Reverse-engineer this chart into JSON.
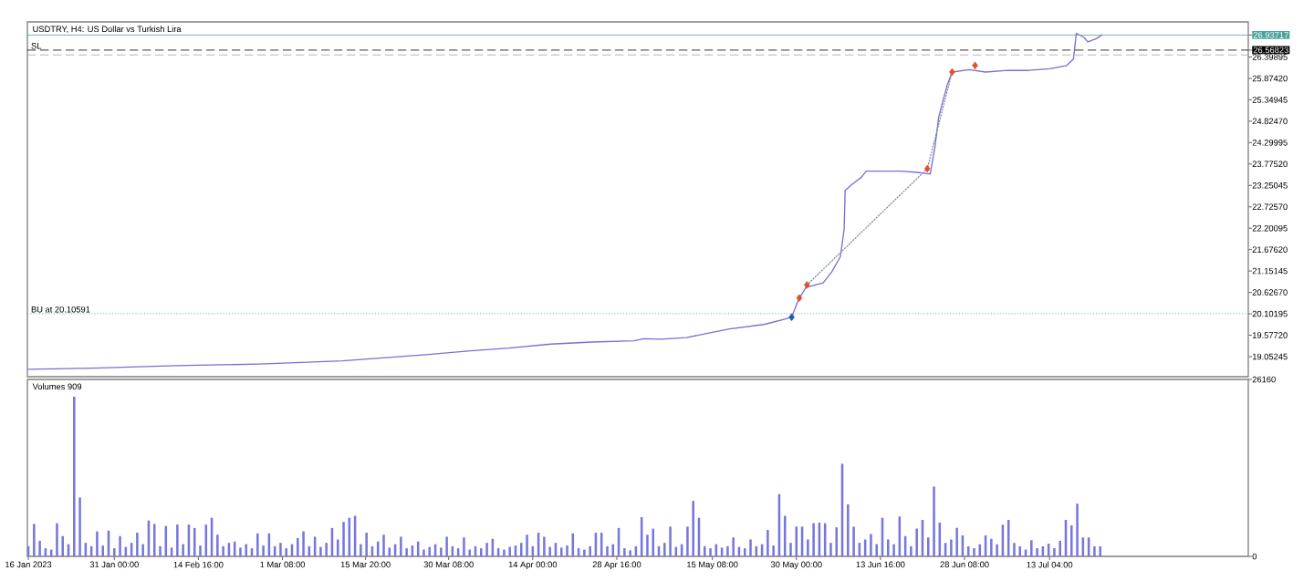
{
  "chart_data": [
    {
      "type": "line",
      "title": "USDTRY, H4: US Dollar vs Turkish Lira",
      "xlim": [
        "2023-01-15T20:00",
        "2023-08-16T20:00"
      ],
      "ylim": [
        18.56,
        27.26
      ],
      "tick_labels": "y",
      "yticks": [
        19.05245,
        {
          "value": 19.5772,
          "label": "19.57720"
        },
        20.10195,
        {
          "value": 20.6267,
          "label": "20.62670"
        },
        21.15145,
        {
          "value": 21.6762,
          "label": "21.67620"
        },
        22.20095,
        {
          "value": 22.7257,
          "label": "22.72570"
        },
        23.25045,
        {
          "value": 23.7752,
          "label": "23.77520"
        },
        24.29995,
        {
          "value": 24.8247,
          "label": "24.82470"
        },
        25.34945,
        {
          "value": 25.8742,
          "label": "25.87420"
        },
        26.39895,
        26.56823,
        26.93717
      ],
      "ref_lines": [
        {
          "axis": "y",
          "value": 26.93717,
          "color": "#4aa39b",
          "line_style": "solid"
        },
        {
          "axis": "y",
          "value": 26.56823,
          "label": "SL",
          "color": "#000000",
          "line_style": "dashed"
        },
        {
          "axis": "y",
          "value": 26.45,
          "color": "#b89aa4",
          "line_style": "dashed"
        },
        {
          "axis": "y",
          "value": 20.10591,
          "label": "BU at 20.10591",
          "color": "#3a9e96",
          "line_style": "dotted"
        }
      ],
      "series": [
        {
          "type": "line",
          "color": "#7a6fd0",
          "x": [
            "2023-01-16T00:00",
            "2023-01-27T08:00",
            "2023-02-10T20:00",
            "2023-02-25T08:00",
            "2023-03-11T20:00",
            "2023-03-26T08:00",
            "2023-04-02T16:00",
            "2023-04-09T20:00",
            "2023-04-17T04:00",
            "2023-04-24T08:00",
            "2023-05-01T16:00",
            "2023-05-03T08:00",
            "2023-05-06T08:00",
            "2023-05-10T20:00",
            "2023-05-18T08:00",
            "2023-05-24T08:00",
            "2023-05-28T00:00",
            "2023-05-29T04:00",
            "2023-05-30T08:00",
            "2023-05-31T16:00",
            "2023-06-03T16:00",
            "2023-06-05T04:00",
            "2023-06-06T16:00",
            "2023-06-07T08:00",
            "2023-06-07T12:00",
            "2023-06-08T20:00",
            "2023-06-10T08:00",
            "2023-06-11T04:00",
            "2023-06-14T04:00",
            "2023-06-17T04:00",
            "2023-06-20T04:00",
            "2023-06-22T08:00",
            "2023-06-23T04:00",
            "2023-06-23T20:00",
            "2023-06-24T12:00",
            "2023-06-25T08:00",
            "2023-06-26T04:00",
            "2023-06-29T04:00",
            "2023-07-02T00:00",
            "2023-07-05T20:00",
            "2023-07-09T12:00",
            "2023-07-13T04:00",
            "2023-07-16T04:00",
            "2023-07-17T08:00",
            "2023-07-17T20:00",
            "2023-07-19T04:00",
            "2023-07-19T20:00",
            "2023-07-21T08:00",
            "2023-07-22T08:00"
          ],
          "values": [
            18.74,
            18.77,
            18.83,
            18.87,
            18.95,
            19.1,
            19.19,
            19.26,
            19.36,
            19.41,
            19.44,
            19.49,
            19.48,
            19.52,
            19.73,
            19.84,
            19.97,
            20.02,
            20.44,
            20.75,
            20.86,
            21.13,
            21.5,
            22.18,
            23.13,
            23.29,
            23.45,
            23.6,
            23.6,
            23.6,
            23.57,
            23.53,
            24.19,
            24.93,
            25.29,
            25.72,
            26.03,
            26.09,
            26.03,
            26.07,
            26.07,
            26.11,
            26.19,
            26.35,
            26.98,
            26.88,
            26.77,
            26.85,
            26.94
          ]
        },
        {
          "type": "line",
          "line_style": "dotted",
          "color": "#8090a8",
          "x": [
            "2023-05-31T20:00",
            "2023-06-21T20:00",
            "2023-06-26T04:00"
          ],
          "values": [
            20.81,
            23.66,
            26.03
          ]
        },
        {
          "type": "scatter",
          "marker": "diamond",
          "color": "#e0512b",
          "x": [
            "2023-05-30T12:00",
            "2023-05-31T20:00",
            "2023-06-21T20:00",
            "2023-06-26T04:00",
            "2023-06-30T04:00"
          ],
          "values": [
            20.49,
            20.81,
            23.66,
            26.03,
            26.19
          ]
        },
        {
          "type": "scatter",
          "marker": "diamond",
          "color": "#1f5fa8",
          "x": [
            "2023-05-29T04:00"
          ],
          "values": [
            20.02
          ]
        }
      ]
    },
    {
      "type": "bar",
      "title": "Volumes 909",
      "xlim": [
        "2023-01-15T20:00",
        "2023-08-16T20:00"
      ],
      "ylim": [
        0,
        26160
      ],
      "yticks": [
        0,
        26160
      ],
      "xticks": [
        {
          "value": "2023-01-16T00:00",
          "label": "16 Jan 2023"
        },
        {
          "value": "2023-01-31T00:00",
          "label": "31 Jan 00:00"
        },
        {
          "value": "2023-02-14T16:00",
          "label": "14 Feb 16:00"
        },
        {
          "value": "2023-03-01T08:00",
          "label": "1 Mar 08:00"
        },
        {
          "value": "2023-03-15T20:00",
          "label": "15 Mar 20:00"
        },
        {
          "value": "2023-03-30T08:00",
          "label": "30 Mar 08:00"
        },
        {
          "value": "2023-04-14T00:00",
          "label": "14 Apr 00:00"
        },
        {
          "value": "2023-04-28T16:00",
          "label": "28 Apr 16:00"
        },
        {
          "value": "2023-05-15T08:00",
          "label": "15 May 08:00"
        },
        {
          "value": "2023-05-30T00:00",
          "label": "30 May 00:00"
        },
        {
          "value": "2023-06-13T16:00",
          "label": "13 Jun 16:00"
        },
        {
          "value": "2023-06-28T08:00",
          "label": "28 Jun 08:00"
        },
        {
          "value": "2023-07-13T04:00",
          "label": "13 Jul 04:00"
        }
      ],
      "color": "#7676de",
      "x": [
        "2023-01-16",
        "2023-01-17",
        "2023-01-18",
        "2023-01-19",
        "2023-01-20",
        "2023-01-21",
        "2023-01-22",
        "2023-01-23",
        "2023-01-24",
        "2023-01-25",
        "2023-01-26",
        "2023-01-27",
        "2023-01-28",
        "2023-01-29",
        "2023-01-30",
        "2023-01-31",
        "2023-02-01",
        "2023-02-02",
        "2023-02-03",
        "2023-02-04",
        "2023-02-05",
        "2023-02-06",
        "2023-02-07",
        "2023-02-08",
        "2023-02-09",
        "2023-02-10",
        "2023-02-11",
        "2023-02-12",
        "2023-02-13",
        "2023-02-14",
        "2023-02-15",
        "2023-02-16",
        "2023-02-17",
        "2023-02-18",
        "2023-02-19",
        "2023-02-20",
        "2023-02-21",
        "2023-02-22",
        "2023-02-23",
        "2023-02-24",
        "2023-02-25",
        "2023-02-26",
        "2023-02-27",
        "2023-02-28",
        "2023-03-01",
        "2023-03-02",
        "2023-03-03",
        "2023-03-04",
        "2023-03-05",
        "2023-03-06",
        "2023-03-07",
        "2023-03-08",
        "2023-03-09",
        "2023-03-10",
        "2023-03-11",
        "2023-03-12",
        "2023-03-13",
        "2023-03-14",
        "2023-03-15",
        "2023-03-16",
        "2023-03-17",
        "2023-03-18",
        "2023-03-19",
        "2023-03-20",
        "2023-03-21",
        "2023-03-22",
        "2023-03-23",
        "2023-03-24",
        "2023-03-25",
        "2023-03-26",
        "2023-03-27",
        "2023-03-28",
        "2023-03-29",
        "2023-03-30",
        "2023-03-31",
        "2023-04-01",
        "2023-04-02",
        "2023-04-03",
        "2023-04-04",
        "2023-04-05",
        "2023-04-06",
        "2023-04-07",
        "2023-04-08",
        "2023-04-09",
        "2023-04-10",
        "2023-04-11",
        "2023-04-12",
        "2023-04-13",
        "2023-04-14",
        "2023-04-15",
        "2023-04-16",
        "2023-04-17",
        "2023-04-18",
        "2023-04-19",
        "2023-04-20",
        "2023-04-21",
        "2023-04-22",
        "2023-04-23",
        "2023-04-24",
        "2023-04-25",
        "2023-04-26",
        "2023-04-27",
        "2023-04-28",
        "2023-04-29",
        "2023-04-30",
        "2023-05-01",
        "2023-05-02",
        "2023-05-03",
        "2023-05-04",
        "2023-05-05",
        "2023-05-06",
        "2023-05-07",
        "2023-05-08",
        "2023-05-09",
        "2023-05-10",
        "2023-05-11",
        "2023-05-12",
        "2023-05-13",
        "2023-05-14",
        "2023-05-15",
        "2023-05-16",
        "2023-05-17",
        "2023-05-18",
        "2023-05-19",
        "2023-05-20",
        "2023-05-21",
        "2023-05-22",
        "2023-05-23",
        "2023-05-24",
        "2023-05-25",
        "2023-05-26",
        "2023-05-27",
        "2023-05-28",
        "2023-05-29",
        "2023-05-30",
        "2023-05-31",
        "2023-06-01",
        "2023-06-02",
        "2023-06-03",
        "2023-06-04",
        "2023-06-05",
        "2023-06-06",
        "2023-06-07",
        "2023-06-08",
        "2023-06-09",
        "2023-06-10",
        "2023-06-11",
        "2023-06-12",
        "2023-06-13",
        "2023-06-14",
        "2023-06-15",
        "2023-06-16",
        "2023-06-17",
        "2023-06-18",
        "2023-06-19",
        "2023-06-20",
        "2023-06-21",
        "2023-06-22",
        "2023-06-23",
        "2023-06-24",
        "2023-06-25",
        "2023-06-26",
        "2023-06-27",
        "2023-06-28",
        "2023-06-29",
        "2023-06-30",
        "2023-07-01",
        "2023-07-02",
        "2023-07-03",
        "2023-07-04",
        "2023-07-05",
        "2023-07-06",
        "2023-07-07",
        "2023-07-08",
        "2023-07-09",
        "2023-07-10",
        "2023-07-11",
        "2023-07-12",
        "2023-07-13",
        "2023-07-14",
        "2023-07-15",
        "2023-07-16",
        "2023-07-17",
        "2023-07-18",
        "2023-07-19",
        "2023-07-20",
        "2023-07-21",
        "2023-07-22"
      ],
      "values": [
        1500,
        4800,
        2300,
        1200,
        1000,
        4900,
        3000,
        1800,
        23600,
        8700,
        2000,
        1500,
        3700,
        1600,
        3800,
        1200,
        3000,
        1400,
        2000,
        3500,
        1800,
        5300,
        4800,
        1500,
        4500,
        1300,
        4700,
        1800,
        4700,
        4200,
        1600,
        4700,
        5700,
        3200,
        1500,
        2000,
        2200,
        1300,
        1800,
        1200,
        3400,
        1600,
        3400,
        1500,
        2000,
        1200,
        1800,
        2700,
        3700,
        1500,
        2900,
        1400,
        2000,
        4200,
        2500,
        5100,
        5700,
        6000,
        1800,
        3500,
        1500,
        2200,
        3200,
        1300,
        1800,
        2900,
        1200,
        1600,
        2200,
        1000,
        1400,
        1800,
        1300,
        2900,
        1500,
        1200,
        2800,
        1000,
        1500,
        1200,
        2000,
        2600,
        1200,
        1000,
        1400,
        1600,
        2000,
        3200,
        1500,
        3500,
        2900,
        1400,
        2000,
        1300,
        1600,
        3400,
        1200,
        1000,
        1500,
        3500,
        3500,
        1500,
        1800,
        4200,
        1200,
        900,
        1500,
        5800,
        3200,
        4100,
        1500,
        2000,
        4400,
        1400,
        1800,
        4400,
        8200,
        5700,
        1500,
        1200,
        1800,
        1300,
        1500,
        2800,
        1400,
        1200,
        2500,
        1500,
        1800,
        3900,
        1600,
        9200,
        6000,
        2000,
        4400,
        4400,
        2500,
        4900,
        5000,
        4900,
        2000,
        4300,
        13700,
        7700,
        4400,
        2000,
        2500,
        3300,
        1800,
        5700,
        2500,
        1800,
        5900,
        3000,
        1500,
        4100,
        5400,
        2800,
        10300,
        5000,
        2000,
        2500,
        4200,
        3100,
        1500,
        1200,
        1800,
        3100,
        2600,
        1800,
        4700,
        5400,
        2000,
        1500,
        1000,
        2400,
        1200,
        1500,
        1900,
        1200,
        2300,
        5400,
        4600,
        7800,
        2800,
        2800,
        1500,
        1500
      ]
    }
  ]
}
